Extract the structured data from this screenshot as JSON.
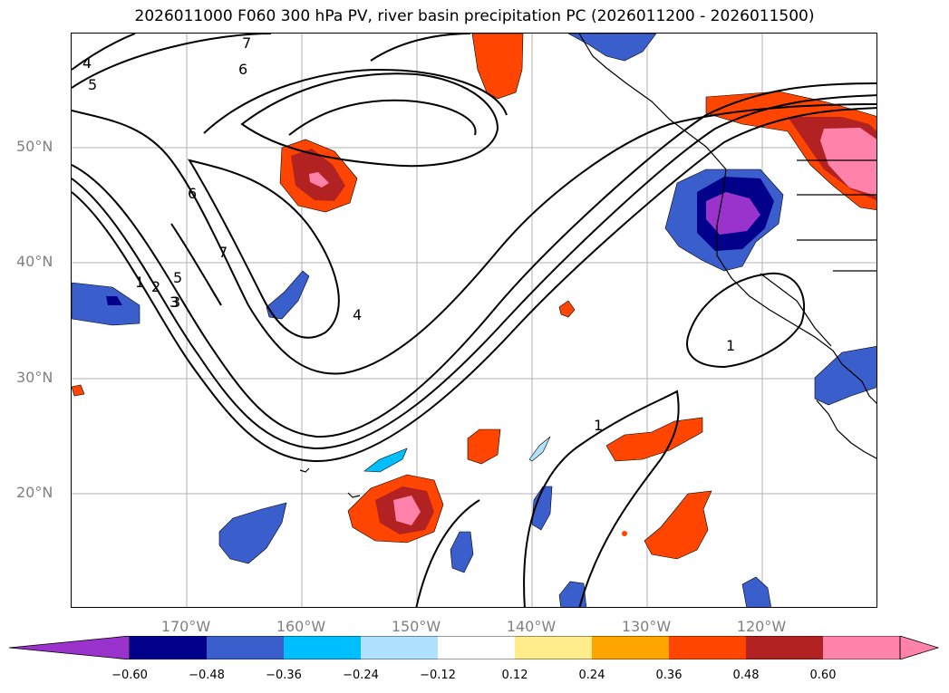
{
  "title": "2026011000 F060 300 hPa PV, river basin precipitation PC (2026011200 - 2026011500)",
  "map": {
    "lat_labels": [
      "50°N",
      "40°N",
      "30°N",
      "20°N"
    ],
    "lon_labels": [
      "170°W",
      "160°W",
      "150°W",
      "140°W",
      "130°W",
      "120°W"
    ],
    "contour_labels": [
      "7",
      "6",
      "5",
      "4",
      "6",
      "7",
      "1",
      "2",
      "3",
      "5",
      "3",
      "4",
      "1",
      "1"
    ]
  },
  "colorbar": {
    "ticks": [
      "−0.60",
      "−0.48",
      "−0.36",
      "−0.24",
      "−0.12",
      "0.12",
      "0.24",
      "0.36",
      "0.48",
      "0.60"
    ],
    "colors": [
      "#9933cc",
      "#00008b",
      "#3a5fcd",
      "#00bfff",
      "#b0e2ff",
      "#ffffff",
      "#ffec8b",
      "#ffa500",
      "#ff4500",
      "#b22222",
      "#ff82ab",
      "#ff82ab"
    ]
  }
}
